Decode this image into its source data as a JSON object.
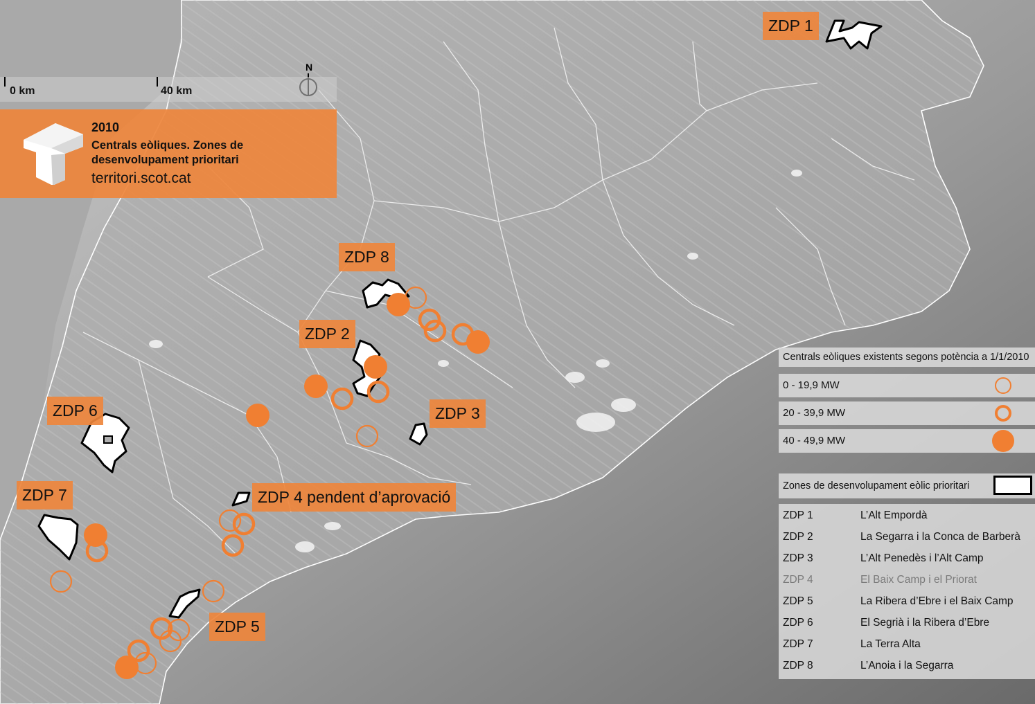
{
  "title": {
    "year": "2010",
    "text": "Centrals eòliques. Zones de desenvolupament prioritari",
    "url": "territori.scot.cat"
  },
  "scale": {
    "start": "0 km",
    "end": "40 km"
  },
  "north": "N",
  "zone_labels": [
    "ZDP 1",
    "ZDP 2",
    "ZDP 3",
    "ZDP 4 pendent d’aprovació",
    "ZDP 5",
    "ZDP 6",
    "ZDP 7",
    "ZDP 8"
  ],
  "legend": {
    "title": "Centrals eòliques existents segons potència a 1/1/2010",
    "classes": [
      {
        "label": "0 - 19,9 MW",
        "symbol": "thin-ring"
      },
      {
        "label": "20 - 39,9 MW",
        "symbol": "thick-ring"
      },
      {
        "label": "40 - 49,9 MW",
        "symbol": "filled-circle"
      }
    ],
    "zones_title": "Zones de desenvolupament eòlic  prioritari",
    "zones": [
      {
        "code": "ZDP 1",
        "name": "L’Alt Empordà"
      },
      {
        "code": "ZDP 2",
        "name": "La Segarra i la Conca de Barberà"
      },
      {
        "code": "ZDP 3",
        "name": "L’Alt Penedès i l’Alt Camp"
      },
      {
        "code": "ZDP 4",
        "name": "El Baix Camp i el Priorat",
        "status": "pending"
      },
      {
        "code": "ZDP 5",
        "name": "La Ribera d’Ebre i el Baix Camp"
      },
      {
        "code": "ZDP 6",
        "name": "El Segrià i la Ribera d’Ebre"
      },
      {
        "code": "ZDP 7",
        "name": "La Terra Alta"
      },
      {
        "code": "ZDP 8",
        "name": "L’Anoia i la Segarra"
      }
    ]
  },
  "colors": {
    "accent": "#f07f32",
    "label_bg": "#ee863c",
    "zone_fill": "#ffffff",
    "zone_stroke": "#000000"
  }
}
